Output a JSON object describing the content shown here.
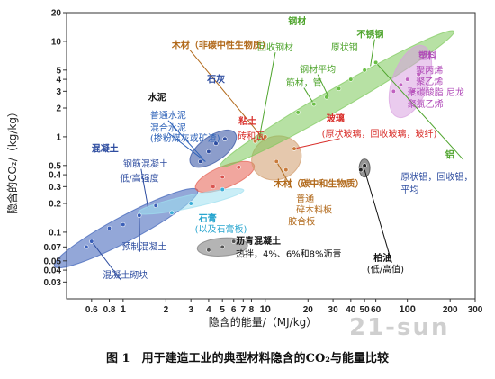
{
  "chart_data": {
    "type": "scatter",
    "xlabel": "隐含的能量/（MJ/kg）",
    "ylabel": "隐含的CO₂/（kg/kg）",
    "x_scale": "log",
    "y_scale": "log",
    "xlim": [
      0.4,
      300
    ],
    "ylim": [
      0.02,
      20
    ],
    "x_ticks": [
      {
        "v": 0.6,
        "t": "0.6"
      },
      {
        "v": 0.8,
        "t": "0.8"
      },
      {
        "v": 1,
        "t": "1"
      },
      {
        "v": 2,
        "t": "2"
      },
      {
        "v": 3,
        "t": "3"
      },
      {
        "v": 4,
        "t": "4"
      },
      {
        "v": 5,
        "t": "5"
      },
      {
        "v": 6,
        "t": "6"
      },
      {
        "v": 7,
        "t": "7"
      },
      {
        "v": 8,
        "t": "8"
      },
      {
        "v": 10,
        "t": "10"
      },
      {
        "v": 20,
        "t": "20"
      },
      {
        "v": 30,
        "t": "30"
      },
      {
        "v": 40,
        "t": "40"
      },
      {
        "v": 50,
        "t": "50"
      },
      {
        "v": 60,
        "t": "60"
      },
      {
        "v": 100,
        "t": "100"
      },
      {
        "v": 200,
        "t": "200"
      },
      {
        "v": 300,
        "t": "300"
      }
    ],
    "y_ticks": [
      {
        "v": 20,
        "t": "20"
      },
      {
        "v": 10,
        "t": "10"
      },
      {
        "v": 5,
        "t": "5"
      },
      {
        "v": 4,
        "t": "4"
      },
      {
        "v": 3,
        "t": "3"
      },
      {
        "v": 2,
        "t": "2"
      },
      {
        "v": 1,
        "t": "1"
      },
      {
        "v": 0.5,
        "t": "0.5"
      },
      {
        "v": 0.4,
        "t": "0.4"
      },
      {
        "v": 0.3,
        "t": "0.3"
      },
      {
        "v": 0.2,
        "t": "0.2"
      },
      {
        "v": 0.1,
        "t": "0.1"
      },
      {
        "v": 0.07,
        "t": "0.07"
      },
      {
        "v": 0.05,
        "t": "0.05"
      },
      {
        "v": 0.04,
        "t": "0.04"
      },
      {
        "v": 0.03,
        "t": "0.03"
      }
    ],
    "major_ticks": [
      "1",
      "10",
      "100"
    ],
    "series": [
      {
        "color": "#3a5fb8",
        "points": [
          [
            0.55,
            0.07
          ],
          [
            0.6,
            0.08
          ],
          [
            0.8,
            0.11
          ],
          [
            1.0,
            0.12
          ],
          [
            1.3,
            0.15
          ],
          [
            1.7,
            0.19
          ]
        ]
      },
      {
        "color": "#2e4da0",
        "points": [
          [
            3.5,
            0.55
          ],
          [
            4.0,
            0.7
          ],
          [
            4.5,
            0.85
          ],
          [
            5.2,
            0.95
          ]
        ]
      },
      {
        "color": "#d9534f",
        "points": [
          [
            4.3,
            0.3
          ],
          [
            5.0,
            0.38
          ],
          [
            6.5,
            0.48
          ]
        ]
      },
      {
        "color": "#3aaed8",
        "points": [
          [
            2.2,
            0.16
          ],
          [
            3.0,
            0.2
          ],
          [
            5.0,
            0.28
          ]
        ]
      },
      {
        "color": "#555555",
        "points": [
          [
            4.0,
            0.065
          ],
          [
            5.0,
            0.07
          ],
          [
            6.0,
            0.08
          ]
        ]
      },
      {
        "color": "#c97a3a",
        "points": [
          [
            8.5,
            0.9
          ],
          [
            10.0,
            1.0
          ],
          [
            12.0,
            0.55
          ],
          [
            14.0,
            0.45
          ],
          [
            16.0,
            0.75
          ]
        ]
      },
      {
        "color": "#6bbf47",
        "points": [
          [
            17.0,
            1.8
          ],
          [
            22.0,
            2.2
          ],
          [
            27.0,
            2.6
          ],
          [
            33.0,
            3.2
          ],
          [
            40.0,
            4.0
          ],
          [
            50.0,
            5.0
          ],
          [
            60.0,
            6.0
          ]
        ]
      },
      {
        "color": "#c061c0",
        "points": [
          [
            80.0,
            3.0
          ],
          [
            90.0,
            3.5
          ],
          [
            100.0,
            4.0
          ],
          [
            110.0,
            3.0
          ],
          [
            120.0,
            4.5
          ]
        ]
      },
      {
        "color": "#222222",
        "points": [
          [
            47.0,
            0.45
          ],
          [
            50.0,
            0.5
          ]
        ]
      }
    ],
    "regions": [
      {
        "color": "#3a5fb8",
        "cx": 1.05,
        "cy": 0.11,
        "rx": 90,
        "ry": 14,
        "rot": -28
      },
      {
        "color": "#2e4da0",
        "cx": 4.3,
        "cy": 0.75,
        "rx": 30,
        "ry": 14,
        "rot": -35
      },
      {
        "color": "#e55c4f",
        "cx": 5.2,
        "cy": 0.38,
        "rx": 35,
        "ry": 12,
        "rot": -22
      },
      {
        "color": "#9fe0f0",
        "cx": 3.0,
        "cy": 0.21,
        "rx": 60,
        "ry": 7,
        "rot": -12
      },
      {
        "color": "#777777",
        "cx": 5.0,
        "cy": 0.07,
        "rx": 28,
        "ry": 10,
        "rot": -4
      },
      {
        "color": "#d09a6a",
        "cx": 12.0,
        "cy": 0.6,
        "rx": 28,
        "ry": 24,
        "rot": -20
      },
      {
        "color": "#7cc95a",
        "cx": 32.0,
        "cy": 2.5,
        "rx": 150,
        "ry": 12,
        "rot": -30
      },
      {
        "color": "#d8a0e0",
        "cx": 105.0,
        "cy": 3.8,
        "rx": 20,
        "ry": 42,
        "rot": 20
      },
      {
        "color": "#3c3c3c",
        "cx": 50.0,
        "cy": 0.47,
        "rx": 6,
        "ry": 10,
        "rot": 0
      }
    ],
    "labels": [
      {
        "text": "水泥",
        "x": 1.5,
        "y": 2.4,
        "color": "#111111",
        "size": 13,
        "bold": true
      },
      {
        "text": "普通水泥",
        "x": 1.55,
        "y": 1.55,
        "color": "#2e62b8",
        "size": 10,
        "bold": false
      },
      {
        "text": "混合水泥",
        "x": 1.55,
        "y": 1.15,
        "color": "#2e62b8",
        "size": 10,
        "bold": false
      },
      {
        "text": "(掺粉煤灰或矿渣)",
        "x": 1.55,
        "y": 0.9,
        "color": "#2e62b8",
        "size": 10,
        "bold": false
      },
      {
        "text": "石灰",
        "x": 3.9,
        "y": 3.7,
        "color": "#2e4da0",
        "size": 12,
        "bold": true
      },
      {
        "text": "混凝土",
        "x": 0.6,
        "y": 0.7,
        "color": "#2e4da0",
        "size": 12,
        "bold": true
      },
      {
        "text": "钢筋混凝土",
        "x": 1.0,
        "y": 0.48,
        "color": "#2e4da0",
        "size": 10,
        "bold": false
      },
      {
        "text": "低/高强度",
        "x": 0.95,
        "y": 0.34,
        "color": "#2e4da0",
        "size": 10,
        "bold": false
      },
      {
        "text": "预制混凝土",
        "x": 0.98,
        "y": 0.065,
        "color": "#2e4da0",
        "size": 10,
        "bold": false
      },
      {
        "text": "混凝土砌块",
        "x": 0.72,
        "y": 0.033,
        "color": "#2e4da0",
        "size": 10,
        "bold": false
      },
      {
        "text": "粘土",
        "x": 6.5,
        "y": 1.35,
        "color": "#d9302c",
        "size": 12,
        "bold": true
      },
      {
        "text": "砖和瓦",
        "x": 6.4,
        "y": 0.95,
        "color": "#d9302c",
        "size": 10,
        "bold": false
      },
      {
        "text": "石膏",
        "x": 3.4,
        "y": 0.13,
        "color": "#2aa6cf",
        "size": 12,
        "bold": true
      },
      {
        "text": "(以及石膏板)",
        "x": 3.2,
        "y": 0.1,
        "color": "#2aa6cf",
        "size": 10,
        "bold": false
      },
      {
        "text": "沥青混凝土",
        "x": 6.2,
        "y": 0.075,
        "color": "#111111",
        "size": 11,
        "bold": true
      },
      {
        "text": "热拌，4%、6%和8%沥青",
        "x": 6.2,
        "y": 0.055,
        "color": "#111111",
        "size": 10,
        "bold": false
      },
      {
        "text": "木材（非碳中性生物质）",
        "x": 2.2,
        "y": 8.5,
        "color": "#b26a1c",
        "size": 10,
        "bold": true
      },
      {
        "text": "钢材",
        "x": 14.5,
        "y": 15.0,
        "color": "#4ea42c",
        "size": 12,
        "bold": true
      },
      {
        "text": "回收钢材",
        "x": 8.8,
        "y": 8.0,
        "color": "#4ea42c",
        "size": 10,
        "bold": false
      },
      {
        "text": "不锈钢",
        "x": 44.0,
        "y": 11.0,
        "color": "#4ea42c",
        "size": 11,
        "bold": true
      },
      {
        "text": "原状钢",
        "x": 29.0,
        "y": 8.0,
        "color": "#4ea42c",
        "size": 10,
        "bold": false
      },
      {
        "text": "钢材平均",
        "x": 17.5,
        "y": 4.7,
        "color": "#4ea42c",
        "size": 10,
        "bold": false
      },
      {
        "text": "筋材，管",
        "x": 14.0,
        "y": 3.4,
        "color": "#4ea42c",
        "size": 10,
        "bold": false
      },
      {
        "text": "玻璃",
        "x": 27.0,
        "y": 1.45,
        "color": "#d9302c",
        "size": 12,
        "bold": true
      },
      {
        "text": "(原状玻璃，回收玻璃，玻纤)",
        "x": 25.0,
        "y": 1.0,
        "color": "#d9302c",
        "size": 10,
        "bold": false
      },
      {
        "text": "塑料",
        "x": 120.0,
        "y": 6.5,
        "color": "#b04ab8",
        "size": 12,
        "bold": true
      },
      {
        "text": "聚丙烯",
        "x": 115.0,
        "y": 4.6,
        "color": "#b04ab8",
        "size": 10,
        "bold": false
      },
      {
        "text": "聚乙烯",
        "x": 115.0,
        "y": 3.5,
        "color": "#b04ab8",
        "size": 10,
        "bold": false
      },
      {
        "text": "聚碳酸脂 尼龙",
        "x": 100.0,
        "y": 2.7,
        "color": "#b04ab8",
        "size": 10,
        "bold": false
      },
      {
        "text": "聚氯乙烯",
        "x": 100.0,
        "y": 2.05,
        "color": "#b04ab8",
        "size": 10,
        "bold": false
      },
      {
        "text": "铝",
        "x": 185.0,
        "y": 0.6,
        "color": "#4ea42c",
        "size": 12,
        "bold": true
      },
      {
        "text": "原状铝，回收铝，",
        "x": 90.0,
        "y": 0.35,
        "color": "#2e4da0",
        "size": 10,
        "bold": false
      },
      {
        "text": "平均",
        "x": 90.0,
        "y": 0.26,
        "color": "#2e4da0",
        "size": 10,
        "bold": false
      },
      {
        "text": "木材（碳中和生物质）",
        "x": 11.5,
        "y": 0.3,
        "color": "#b26a1c",
        "size": 10,
        "bold": true
      },
      {
        "text": "普通",
        "x": 16.5,
        "y": 0.21,
        "color": "#b26a1c",
        "size": 10,
        "bold": false
      },
      {
        "text": "碎木料板",
        "x": 16.5,
        "y": 0.16,
        "color": "#b26a1c",
        "size": 10,
        "bold": false
      },
      {
        "text": "胶合板",
        "x": 14.5,
        "y": 0.12,
        "color": "#b26a1c",
        "size": 10,
        "bold": false
      },
      {
        "text": "柏油",
        "x": 58.0,
        "y": 0.05,
        "color": "#111111",
        "size": 12,
        "bold": true
      },
      {
        "text": "(低/高值)",
        "x": 52.0,
        "y": 0.038,
        "color": "#111111",
        "size": 10,
        "bold": false
      }
    ]
  },
  "caption": "图 1　用于建造工业的典型材料隐含的CO₂与能量比较",
  "watermark": "21-sun"
}
